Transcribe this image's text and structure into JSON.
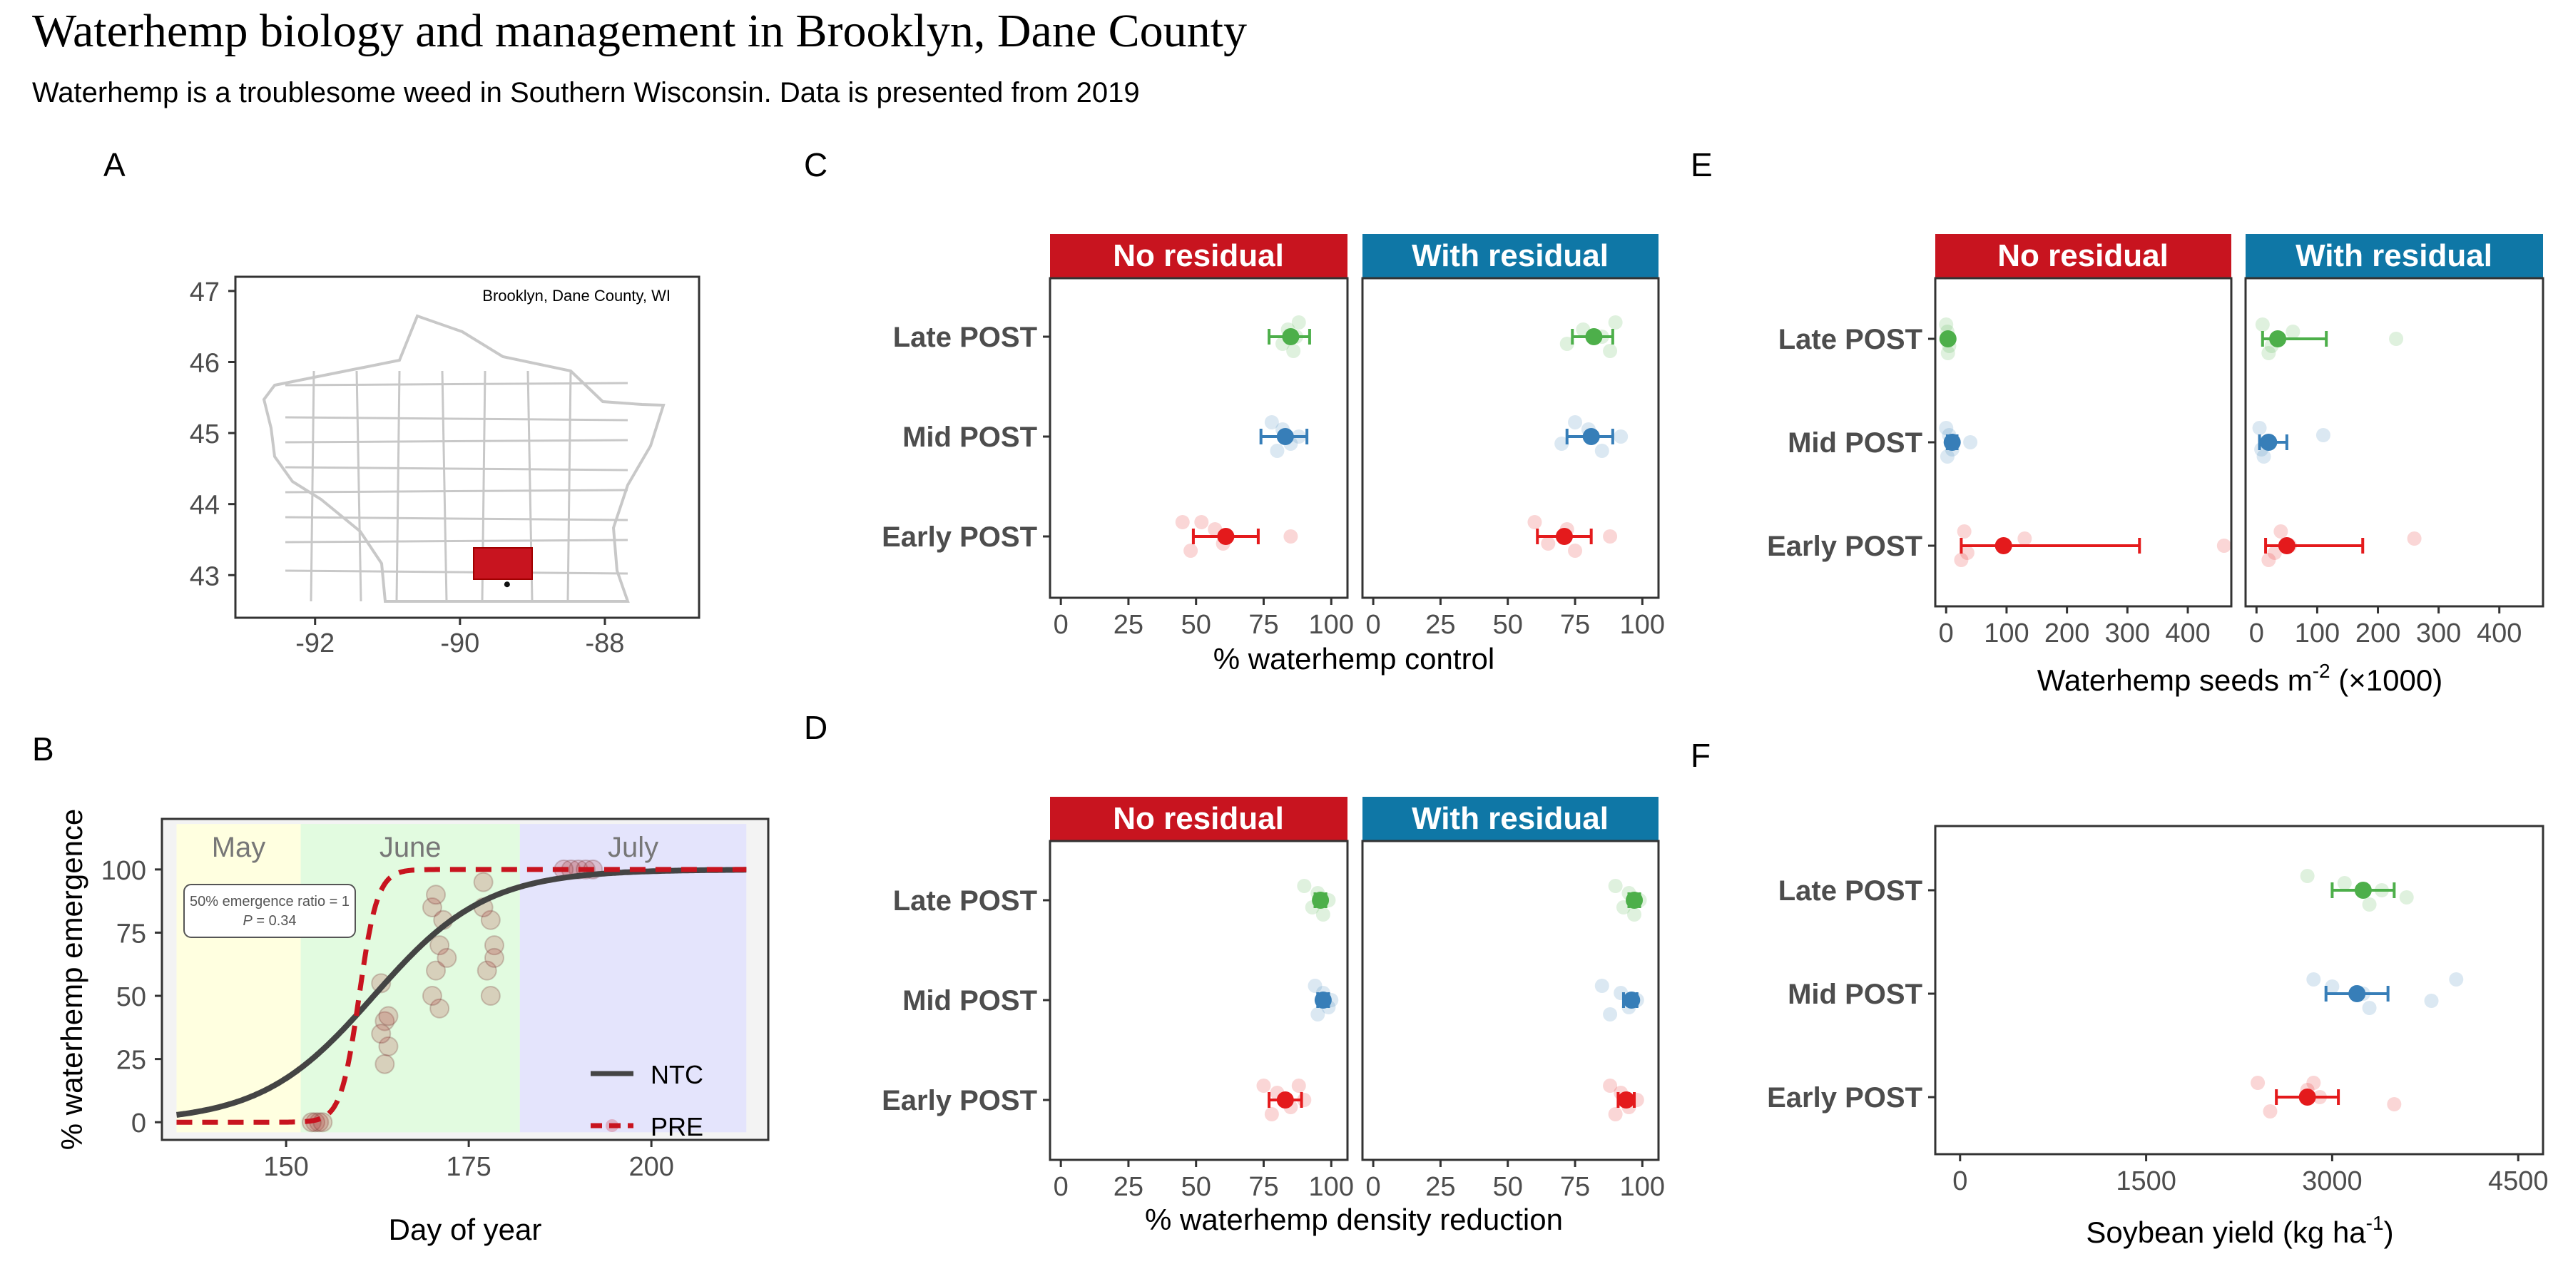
{
  "header": {
    "title": "Waterhemp biology and management in Brooklyn, Dane County",
    "subtitle": "Waterhemp is a troublesome weed in Southern Wisconsin. Data is presented from 2019"
  },
  "colors": {
    "no_residual": "#c8141f",
    "with_residual": "#0f77a6",
    "late_post": "#4daf4a",
    "mid_post": "#377eb8",
    "early_post": "#e41a1c",
    "ntc_line": "#444444",
    "pre_line": "#c8141f",
    "may_band": "#ffffe0",
    "june_band": "#e2fbe0",
    "july_band": "#e4e4fc",
    "county_fill": "#c8141f",
    "county_border": "#c8c8c8"
  },
  "panels": {
    "a": {
      "label": "A",
      "annotation": "Brooklyn, Dane County, WI",
      "y_ticks": [
        "47",
        "46",
        "45",
        "44",
        "43"
      ],
      "x_ticks": [
        "-92",
        "-90",
        "-88"
      ],
      "highlighted_county": "Dane County"
    },
    "b": {
      "label": "B",
      "ylabel": "% waterhemp emergence",
      "xlabel": "Day of year",
      "month_labels": [
        "May",
        "June",
        "July"
      ],
      "annotation_line1": "50% emergence ratio = 1",
      "annotation_p": "P",
      "annotation_rest": " = 0.34",
      "legend": [
        "NTC",
        "PRE"
      ],
      "x_ticks": [
        "150",
        "175",
        "200"
      ],
      "y_ticks": [
        "0",
        "25",
        "50",
        "75",
        "100"
      ]
    },
    "c": {
      "label": "C",
      "facets": [
        "No residual",
        "With residual"
      ],
      "categories": [
        "Late POST",
        "Mid POST",
        "Early POST"
      ],
      "x_ticks": [
        "0",
        "25",
        "50",
        "75",
        "100"
      ],
      "xlabel": "% waterhemp control"
    },
    "d": {
      "label": "D",
      "facets": [
        "No residual",
        "With residual"
      ],
      "categories": [
        "Late POST",
        "Mid POST",
        "Early POST"
      ],
      "x_ticks": [
        "0",
        "25",
        "50",
        "75",
        "100"
      ],
      "xlabel": "% waterhemp density reduction"
    },
    "e": {
      "label": "E",
      "facets": [
        "No residual",
        "With residual"
      ],
      "categories": [
        "Late POST",
        "Mid POST",
        "Early POST"
      ],
      "x_ticks": [
        "0",
        "100",
        "200",
        "300",
        "400"
      ],
      "xlabel_main": "Waterhemp seeds m",
      "xlabel_sup": "-2",
      "xlabel_tail": " (×1000)"
    },
    "f": {
      "label": "F",
      "categories": [
        "Late POST",
        "Mid POST",
        "Early POST"
      ],
      "x_ticks": [
        "0",
        "1500",
        "3000",
        "4500"
      ],
      "xlabel_main": "Soybean yield (kg ha",
      "xlabel_sup": "-1",
      "xlabel_tail": ")"
    }
  },
  "chart_data": [
    {
      "panel": "A",
      "type": "map",
      "x": "longitude",
      "y": "latitude",
      "xlim": [
        -93.1,
        -86.7
      ],
      "ylim": [
        42.4,
        47.2
      ],
      "marker": {
        "lon": -89.35,
        "lat": 42.87
      }
    },
    {
      "panel": "B",
      "type": "line",
      "xlim": [
        133,
        216
      ],
      "ylim": [
        -7,
        120
      ],
      "grid": false,
      "legend_position": "bottom-right",
      "bands": [
        {
          "name": "May",
          "from": 135,
          "to": 152
        },
        {
          "name": "June",
          "from": 152,
          "to": 182
        },
        {
          "name": "July",
          "from": 182,
          "to": 213
        }
      ],
      "series": [
        {
          "name": "NTC",
          "style": "solid",
          "x_range": [
            135,
            213
          ],
          "midpoint": 162,
          "rate": 0.13
        },
        {
          "name": "PRE",
          "style": "dashed",
          "x_range": [
            135,
            213
          ],
          "midpoint": 160,
          "rate": 0.8
        }
      ],
      "points": [
        {
          "x": 154,
          "y": 0
        },
        {
          "x": 154.5,
          "y": 0
        },
        {
          "x": 153.5,
          "y": 0
        },
        {
          "x": 155,
          "y": 0
        },
        {
          "x": 163,
          "y": 55
        },
        {
          "x": 163.5,
          "y": 40
        },
        {
          "x": 164,
          "y": 30
        },
        {
          "x": 163.5,
          "y": 23
        },
        {
          "x": 164,
          "y": 42
        },
        {
          "x": 163,
          "y": 35
        },
        {
          "x": 170,
          "y": 85
        },
        {
          "x": 171,
          "y": 70
        },
        {
          "x": 170.5,
          "y": 60
        },
        {
          "x": 171,
          "y": 45
        },
        {
          "x": 170,
          "y": 50
        },
        {
          "x": 172,
          "y": 65
        },
        {
          "x": 171.5,
          "y": 80
        },
        {
          "x": 170.5,
          "y": 90
        },
        {
          "x": 177,
          "y": 95
        },
        {
          "x": 178,
          "y": 80
        },
        {
          "x": 178.5,
          "y": 70
        },
        {
          "x": 177.5,
          "y": 60
        },
        {
          "x": 178,
          "y": 50
        },
        {
          "x": 177,
          "y": 85
        },
        {
          "x": 178.5,
          "y": 65
        },
        {
          "x": 189,
          "y": 100
        },
        {
          "x": 190,
          "y": 100
        },
        {
          "x": 191,
          "y": 100
        },
        {
          "x": 192,
          "y": 100
        },
        {
          "x": 188,
          "y": 100
        }
      ]
    },
    {
      "panel": "C",
      "type": "dot-errorbar",
      "xlabel": "% waterhemp control",
      "xlim": [
        -4,
        106
      ],
      "facets": [
        "No residual",
        "With residual"
      ],
      "categories": [
        "Late POST",
        "Mid POST",
        "Early POST"
      ],
      "estimates": {
        "No residual": [
          {
            "category": "Late POST",
            "mean": 85,
            "low": 77,
            "high": 92
          },
          {
            "category": "Mid POST",
            "mean": 83,
            "low": 74,
            "high": 91
          },
          {
            "category": "Early POST",
            "mean": 61,
            "low": 49,
            "high": 73
          }
        ],
        "With residual": [
          {
            "category": "Late POST",
            "mean": 82,
            "low": 74,
            "high": 89
          },
          {
            "category": "Mid POST",
            "mean": 81,
            "low": 72,
            "high": 89
          },
          {
            "category": "Early POST",
            "mean": 71,
            "low": 61,
            "high": 81
          }
        ]
      },
      "raw_points": {
        "No residual": {
          "Late POST": [
            88,
            84,
            87,
            82,
            86
          ],
          "Mid POST": [
            78,
            82,
            88,
            85,
            80
          ],
          "Early POST": [
            45,
            57,
            85,
            60,
            48,
            52
          ]
        },
        "With residual": {
          "Late POST": [
            90,
            78,
            85,
            72,
            88
          ],
          "Mid POST": [
            75,
            80,
            92,
            70,
            85
          ],
          "Early POST": [
            60,
            72,
            88,
            65,
            75
          ]
        }
      }
    },
    {
      "panel": "D",
      "type": "dot-errorbar",
      "xlabel": "% waterhemp density reduction",
      "xlim": [
        -4,
        106
      ],
      "facets": [
        "No residual",
        "With residual"
      ],
      "categories": [
        "Late POST",
        "Mid POST",
        "Early POST"
      ],
      "estimates": {
        "No residual": [
          {
            "category": "Late POST",
            "mean": 96,
            "low": 94,
            "high": 98
          },
          {
            "category": "Mid POST",
            "mean": 97,
            "low": 95,
            "high": 99
          },
          {
            "category": "Early POST",
            "mean": 83,
            "low": 77,
            "high": 89
          }
        ],
        "With residual": [
          {
            "category": "Late POST",
            "mean": 97,
            "low": 95,
            "high": 99
          },
          {
            "category": "Mid POST",
            "mean": 96,
            "low": 93,
            "high": 98
          },
          {
            "category": "Early POST",
            "mean": 94,
            "low": 91,
            "high": 97
          }
        ]
      },
      "raw_points": {
        "No residual": {
          "Late POST": [
            90,
            95,
            99,
            93,
            97
          ],
          "Mid POST": [
            94,
            97,
            100,
            99,
            95
          ],
          "Early POST": [
            75,
            80,
            90,
            85,
            78,
            88
          ]
        },
        "With residual": {
          "Late POST": [
            90,
            95,
            99,
            93,
            97
          ],
          "Mid POST": [
            85,
            92,
            98,
            95,
            88
          ],
          "Early POST": [
            88,
            92,
            98,
            95,
            90
          ]
        }
      }
    },
    {
      "panel": "E",
      "type": "dot-errorbar",
      "xlabel": "Waterhemp seeds m-2 (×1000)",
      "xlim": [
        -18,
        472
      ],
      "facets": [
        "No residual",
        "With residual"
      ],
      "categories": [
        "Late POST",
        "Mid POST",
        "Early POST"
      ],
      "estimates": {
        "No residual": [
          {
            "category": "Late POST",
            "mean": 3,
            "low": 0,
            "high": 6
          },
          {
            "category": "Mid POST",
            "mean": 10,
            "low": 2,
            "high": 18
          },
          {
            "category": "Early POST",
            "mean": 95,
            "low": 25,
            "high": 320
          }
        ],
        "With residual": [
          {
            "category": "Late POST",
            "mean": 35,
            "low": 10,
            "high": 115
          },
          {
            "category": "Mid POST",
            "mean": 20,
            "low": 5,
            "high": 50
          },
          {
            "category": "Early POST",
            "mean": 50,
            "low": 15,
            "high": 175
          }
        ]
      },
      "raw_points": {
        "No residual": {
          "Late POST": [
            0,
            2,
            1,
            5,
            3
          ],
          "Mid POST": [
            0,
            5,
            40,
            10,
            2
          ],
          "Early POST": [
            30,
            130,
            460,
            35,
            25
          ]
        },
        "With residual": {
          "Late POST": [
            10,
            60,
            230,
            25,
            20
          ],
          "Mid POST": [
            5,
            110,
            15,
            8,
            12
          ],
          "Early POST": [
            40,
            260,
            55,
            30,
            20
          ]
        }
      }
    },
    {
      "panel": "F",
      "type": "dot-errorbar",
      "xlabel": "Soybean yield (kg ha-1)",
      "xlim": [
        -200,
        4700
      ],
      "categories": [
        "Late POST",
        "Mid POST",
        "Early POST"
      ],
      "estimates": [
        {
          "category": "Late POST",
          "mean": 3250,
          "low": 3000,
          "high": 3500
        },
        {
          "category": "Mid POST",
          "mean": 3200,
          "low": 2950,
          "high": 3450
        },
        {
          "category": "Early POST",
          "mean": 2800,
          "low": 2550,
          "high": 3050
        }
      ],
      "raw_points": {
        "Late POST": [
          2800,
          3100,
          3400,
          3600,
          3300
        ],
        "Mid POST": [
          2850,
          3000,
          3250,
          3800,
          3300,
          4000
        ],
        "Early POST": [
          2400,
          2800,
          2900,
          3500,
          2500,
          2850
        ]
      }
    }
  ]
}
